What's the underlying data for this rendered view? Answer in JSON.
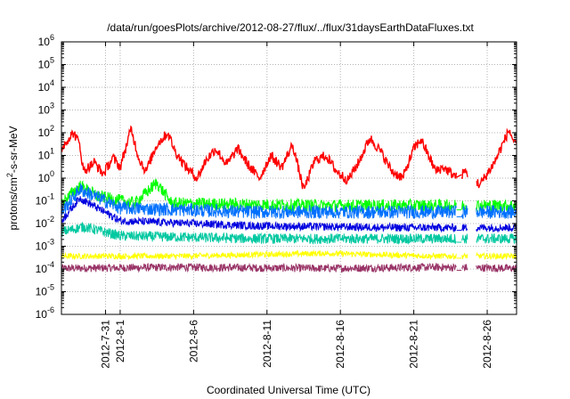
{
  "chart_data": {
    "type": "line",
    "title": "/data/run/goesPlots/archive/2012-08-27/flux/../flux/31daysEarthDataFluxes.txt",
    "xlabel": "Coordinated Universal Time (UTC)",
    "ylabel": {
      "base": "protons/cm",
      "sup": "2",
      "rest": "-s-sr-MeV"
    },
    "y_scale": "log",
    "ylim_exp": [
      -6,
      6
    ],
    "y_ticks": [
      {
        "exp": -6,
        "base": "10",
        "sup": "-6"
      },
      {
        "exp": -5,
        "base": "10",
        "sup": "-5"
      },
      {
        "exp": -4,
        "base": "10",
        "sup": "-4"
      },
      {
        "exp": -3,
        "base": "10",
        "sup": "-3"
      },
      {
        "exp": -2,
        "base": "10",
        "sup": "-2"
      },
      {
        "exp": -1,
        "base": "10",
        "sup": "-1"
      },
      {
        "exp": 0,
        "base": "10",
        "sup": "0"
      },
      {
        "exp": 1,
        "base": "10",
        "sup": "1"
      },
      {
        "exp": 2,
        "base": "10",
        "sup": "2"
      },
      {
        "exp": 3,
        "base": "10",
        "sup": "3"
      },
      {
        "exp": 4,
        "base": "10",
        "sup": "4"
      },
      {
        "exp": 5,
        "base": "10",
        "sup": "5"
      },
      {
        "exp": 6,
        "base": "10",
        "sup": "6"
      }
    ],
    "xlim": [
      "2012-07-28",
      "2012-08-28"
    ],
    "x_ticks": [
      {
        "date": "2012-07-31",
        "label": "2012-7-31"
      },
      {
        "date": "2012-08-01",
        "label": "2012-8-1"
      },
      {
        "date": "2012-08-06",
        "label": "2012-8-6"
      },
      {
        "date": "2012-08-11",
        "label": "2012-8-11"
      },
      {
        "date": "2012-08-16",
        "label": "2012-8-16"
      },
      {
        "date": "2012-08-21",
        "label": "2012-8-21"
      },
      {
        "date": "2012-08-26",
        "label": "2012-8-26"
      }
    ],
    "grid": true,
    "data_gaps": [
      [
        "2012-08-23T22:00",
        "2012-08-24T06:00"
      ],
      [
        "2012-08-24T16:00",
        "2012-08-25T06:00"
      ]
    ],
    "series": [
      {
        "color": "#993366",
        "points": [
          [
            "2012-07-28T00:00",
            8e-05
          ],
          [
            "2012-08-05T00:00",
            9e-05
          ],
          [
            "2012-08-15T00:00",
            8e-05
          ],
          [
            "2012-08-22T12:00",
            9e-05
          ],
          [
            "2012-08-28T00:00",
            8e-05
          ]
        ]
      },
      {
        "color": "#ffff00",
        "points": [
          [
            "2012-07-28T00:00",
            0.0003
          ],
          [
            "2012-08-05T00:00",
            0.0003
          ],
          [
            "2012-08-15T00:00",
            0.0004
          ],
          [
            "2012-08-22T12:00",
            0.0003
          ],
          [
            "2012-08-28T00:00",
            0.0003
          ]
        ]
      },
      {
        "color": "#00c8a0",
        "points": [
          [
            "2012-07-28T00:00",
            0.003
          ],
          [
            "2012-07-29T12:00",
            0.005
          ],
          [
            "2012-08-01T00:00",
            0.002
          ],
          [
            "2012-08-10T00:00",
            0.0015
          ],
          [
            "2012-08-20T00:00",
            0.0015
          ],
          [
            "2012-08-28T00:00",
            0.0015
          ]
        ]
      },
      {
        "color": "#00ff00",
        "points": [
          [
            "2012-07-28T00:00",
            0.05
          ],
          [
            "2012-07-29T06:00",
            0.3
          ],
          [
            "2012-07-30T12:00",
            0.1
          ],
          [
            "2012-08-02T00:00",
            0.05
          ],
          [
            "2012-08-03T12:00",
            0.4
          ],
          [
            "2012-08-04T12:00",
            0.05
          ],
          [
            "2012-08-15T00:00",
            0.04
          ],
          [
            "2012-08-28T00:00",
            0.04
          ]
        ]
      },
      {
        "color": "#0070ff",
        "points": [
          [
            "2012-07-28T00:00",
            0.02
          ],
          [
            "2012-07-29T06:00",
            0.2
          ],
          [
            "2012-08-01T00:00",
            0.03
          ],
          [
            "2012-08-10T00:00",
            0.02
          ],
          [
            "2012-08-20T00:00",
            0.02
          ],
          [
            "2012-08-28T00:00",
            0.02
          ]
        ]
      },
      {
        "color": "#0000e0",
        "points": [
          [
            "2012-07-28T00:00",
            0.01
          ],
          [
            "2012-07-29T06:00",
            0.1
          ],
          [
            "2012-08-01T00:00",
            0.01
          ],
          [
            "2012-08-10T00:00",
            0.006
          ],
          [
            "2012-08-20T00:00",
            0.005
          ],
          [
            "2012-08-28T00:00",
            0.005
          ]
        ]
      },
      {
        "color": "#ff0000",
        "points": [
          [
            "2012-07-28T00:00",
            20
          ],
          [
            "2012-07-28T12:00",
            60
          ],
          [
            "2012-07-28T20:00",
            100
          ],
          [
            "2012-07-29T06:00",
            30
          ],
          [
            "2012-07-29T12:00",
            2
          ],
          [
            "2012-07-30T06:00",
            5
          ],
          [
            "2012-07-30T20:00",
            1.5
          ],
          [
            "2012-07-31T12:00",
            8
          ],
          [
            "2012-08-01T00:00",
            3
          ],
          [
            "2012-08-01T18:00",
            150
          ],
          [
            "2012-08-02T06:00",
            8
          ],
          [
            "2012-08-02T18:00",
            2
          ],
          [
            "2012-08-03T12:00",
            30
          ],
          [
            "2012-08-04T06:00",
            100
          ],
          [
            "2012-08-04T18:00",
            15
          ],
          [
            "2012-08-05T12:00",
            3
          ],
          [
            "2012-08-06T06:00",
            1
          ],
          [
            "2012-08-06T20:00",
            6
          ],
          [
            "2012-08-07T12:00",
            20
          ],
          [
            "2012-08-08T06:00",
            4
          ],
          [
            "2012-08-09T00:00",
            20
          ],
          [
            "2012-08-09T20:00",
            3
          ],
          [
            "2012-08-10T12:00",
            1
          ],
          [
            "2012-08-11T06:00",
            10
          ],
          [
            "2012-08-12T00:00",
            3
          ],
          [
            "2012-08-12T18:00",
            30
          ],
          [
            "2012-08-13T12:00",
            0.3
          ],
          [
            "2012-08-14T06:00",
            6
          ],
          [
            "2012-08-15T00:00",
            10
          ],
          [
            "2012-08-15T18:00",
            2
          ],
          [
            "2012-08-16T12:00",
            0.8
          ],
          [
            "2012-08-17T06:00",
            5
          ],
          [
            "2012-08-18T00:00",
            60
          ],
          [
            "2012-08-18T18:00",
            15
          ],
          [
            "2012-08-19T12:00",
            2
          ],
          [
            "2012-08-20T06:00",
            1
          ],
          [
            "2012-08-21T00:00",
            20
          ],
          [
            "2012-08-21T12:00",
            50
          ],
          [
            "2012-08-22T00:00",
            10
          ],
          [
            "2012-08-22T12:00",
            2
          ],
          [
            "2012-08-23T00:00",
            3
          ],
          [
            "2012-08-24T00:00",
            1
          ],
          [
            "2012-08-24T12:00",
            2
          ],
          [
            "2012-08-25T12:00",
            0.5
          ],
          [
            "2012-08-26T12:00",
            5
          ],
          [
            "2012-08-27T06:00",
            60
          ],
          [
            "2012-08-27T12:00",
            130
          ],
          [
            "2012-08-28T00:00",
            20
          ]
        ]
      }
    ]
  }
}
